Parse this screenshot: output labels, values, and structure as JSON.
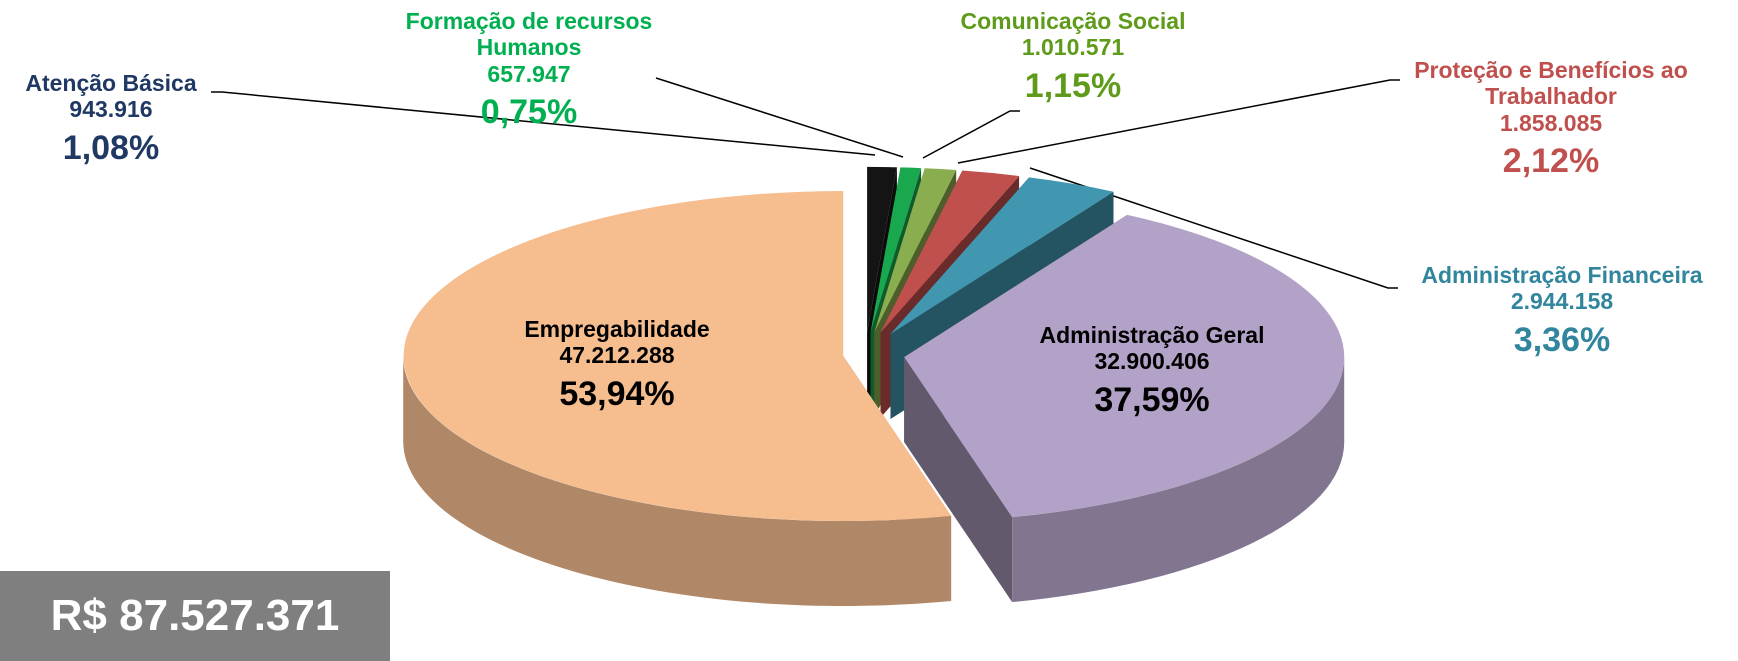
{
  "chart_data": {
    "type": "pie",
    "categories": [
      "Atenção Básica",
      "Formação de recursos Humanos",
      "Comunicação Social",
      "Proteção e Benefícios ao Trabalhador",
      "Administração Financeira",
      "Administração Geral",
      "Empregabilidade"
    ],
    "values": [
      1.08,
      0.75,
      1.15,
      2.12,
      3.36,
      37.59,
      53.94
    ],
    "value_labels": [
      "1,08%",
      "0,75%",
      "1,15%",
      "2,12%",
      "3,36%",
      "37,59%",
      "53,94%"
    ],
    "amounts": [
      943916,
      657947,
      1010571,
      1858085,
      2944158,
      32900406,
      47212288
    ],
    "amount_labels": [
      "943.916",
      "657.947",
      "1.010.571",
      "1.858.085",
      "2.944.158",
      "32.900.406",
      "47.212.288"
    ],
    "colors": [
      "#141414",
      "#1aa84f",
      "#8aad4f",
      "#c0504d",
      "#4197b0",
      "#b3a2c7",
      "#f6bd8f"
    ],
    "label_colors": [
      "#1f3864",
      "#00b050",
      "#5e9b1a",
      "#c0504d",
      "#31859c",
      "#000000",
      "#000000"
    ],
    "total": {
      "value": 87527371,
      "label": "R$ 87.527.371"
    }
  }
}
